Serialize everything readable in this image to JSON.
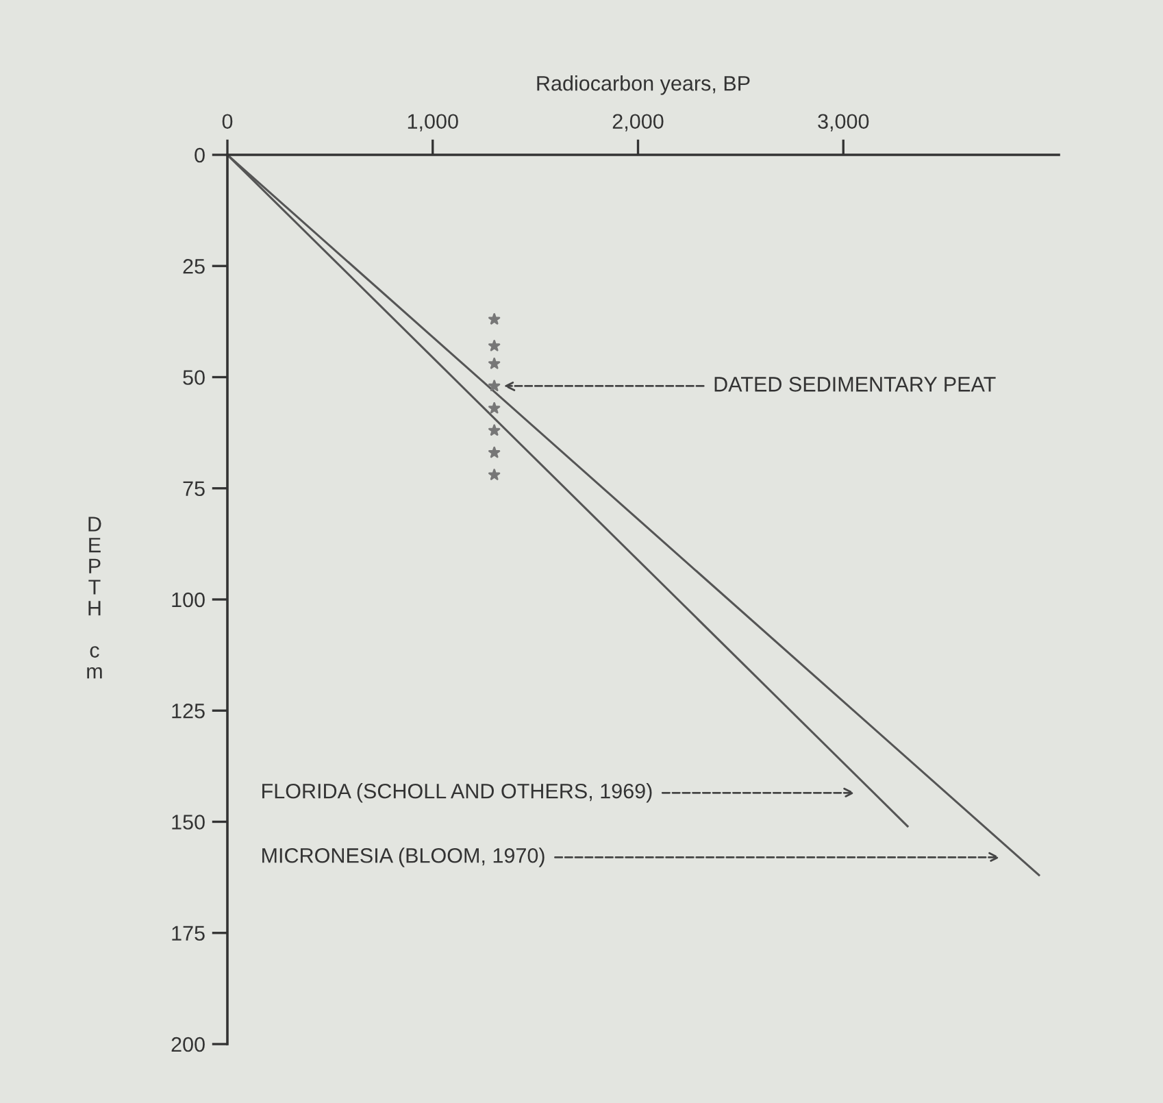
{
  "chart_data": {
    "type": "line",
    "xlabel": "Radiocarbon years, BP",
    "ylabel": "DEPTH cm",
    "xlim": [
      0,
      4050
    ],
    "ylim": [
      200,
      0
    ],
    "xticks": [
      0,
      {
        "value": 1000,
        "label": "1,000"
      },
      {
        "value": 2000,
        "label": "2,000"
      },
      {
        "value": 3000,
        "label": "3,000"
      }
    ],
    "yticks": [
      0,
      25,
      50,
      75,
      100,
      125,
      150,
      175,
      200
    ],
    "grid": false,
    "legend": false,
    "series": [
      {
        "color": "#555555",
        "x": [
          0,
          3313
        ],
        "values": [
          0,
          151
        ],
        "marker": "none",
        "line_style": "solid"
      },
      {
        "color": "#555555",
        "x": [
          0,
          3953
        ],
        "values": [
          0,
          162
        ],
        "marker": "none",
        "line_style": "solid"
      },
      {
        "type": "scatter",
        "color": "#777777",
        "x": [
          1300,
          1300,
          1300,
          1300,
          1300,
          1300,
          1300,
          1300
        ],
        "values": [
          37,
          43,
          47,
          52,
          57,
          62,
          67,
          72
        ],
        "marker": "star"
      }
    ],
    "annotations": [
      {
        "text": "DATED SEDIMENTARY PEAT",
        "x": 1300,
        "y": 52
      },
      "FLORIDA (SCHOLL AND OTHERS, 1969)",
      "MICRONESIA (BLOOM, 1970)"
    ]
  }
}
